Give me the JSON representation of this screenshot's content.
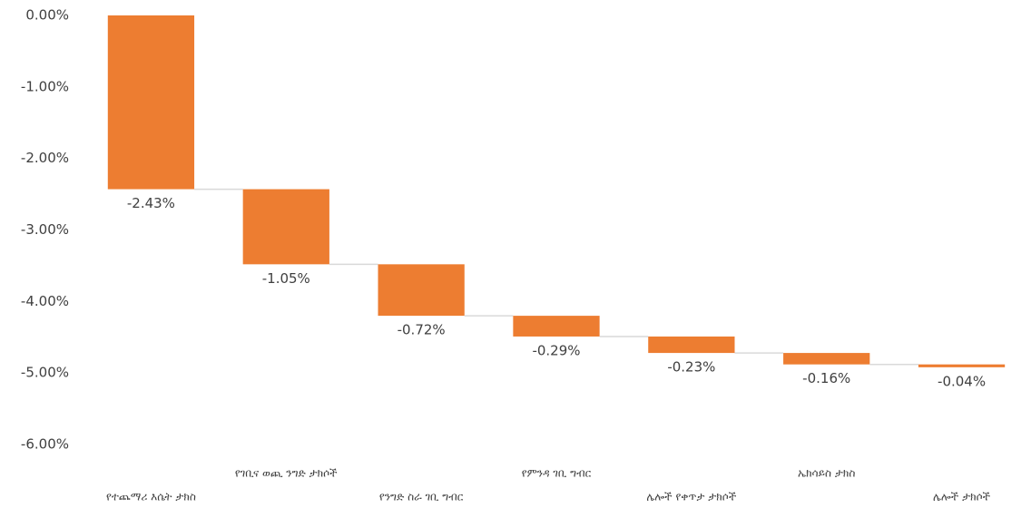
{
  "chart_data": {
    "type": "waterfall",
    "categories": [
      "የተጨማሪ እሴት ታክስ",
      "የገቢና ወጪ ንግድ ታክሶች",
      "የንግድ ስራ ገቢ ግብር",
      "የምንዳ ገቢ ግብር",
      "ሌሎች የቀጥታ ታክሶች",
      "ኤክሳይስ ታክስ",
      "ሌሎች ታክሶች"
    ],
    "values": [
      -2.43,
      -1.05,
      -0.72,
      -0.29,
      -0.23,
      -0.16,
      -0.04
    ],
    "value_labels": [
      "-2.43%",
      "-1.05%",
      "-0.72%",
      "-0.29%",
      "-0.23%",
      "-0.16%",
      "-0.04%"
    ],
    "color": "#ed7d31",
    "ylim": [
      -6,
      0
    ],
    "yticks": [
      {
        "value": 0,
        "label": "0.00%"
      },
      {
        "value": -1,
        "label": "-1.00%"
      },
      {
        "value": -2,
        "label": "-2.00%"
      },
      {
        "value": -3,
        "label": "-3.00%"
      },
      {
        "value": -4,
        "label": "-4.00%"
      },
      {
        "value": -5,
        "label": "-5.00%"
      },
      {
        "value": -6,
        "label": "-6.00%"
      }
    ],
    "grid": false
  }
}
